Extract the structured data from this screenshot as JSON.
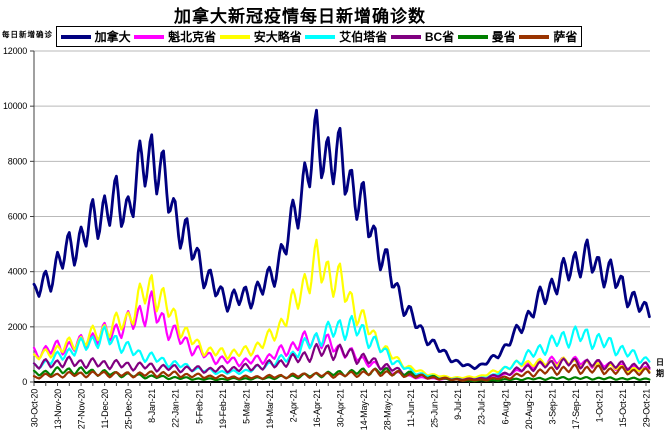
{
  "chart_data": {
    "type": "line",
    "title": "加拿大新冠疫情每日新增确诊数",
    "ylabel": "每日新增确诊",
    "xlabel": "日期",
    "ylim": [
      0,
      12000
    ],
    "yticks": [
      0,
      2000,
      4000,
      6000,
      8000,
      10000,
      12000
    ],
    "grid": true,
    "legend_position": "top",
    "x_start_label": "30-Oct-20",
    "x_end_label": "29-Oct-21",
    "n_days": 365,
    "xtick_label_every_days": 14,
    "minor_xtick_every_days": 7,
    "xtick_labels": [
      "30-Oct-20",
      "13-Nov-20",
      "27-Nov-20",
      "11-Dec-20",
      "25-Dec-20",
      "8-Jan-21",
      "22-Jan-21",
      "5-Feb-21",
      "19-Feb-21",
      "5-Mar-21",
      "19-Mar-21",
      "2-Apr-21",
      "16-Apr-21",
      "30-Apr-21",
      "14-May-21",
      "28-May-21",
      "11-Jun-21",
      "25-Jun-21",
      "9-Jul-21",
      "23-Jul-21",
      "6-Aug-21",
      "20-Aug-21",
      "3-Sep-21",
      "17-Sep-21",
      "1-Oct-21",
      "15-Oct-21",
      "29-Oct-21"
    ],
    "sampling_note": "weekly_values are weekly-mean daily new cases sampled every 7 days from 30-Oct-20; the plotted daily line oscillates around these means with a 7-day reporting cycle of relative amplitude osc_amp",
    "series": [
      {
        "name": "加拿大",
        "color": "#000080",
        "osc_amp": 0.12,
        "weekly_values": [
          3200,
          3600,
          4300,
          4800,
          5200,
          5800,
          6300,
          6500,
          6300,
          7600,
          8400,
          7300,
          6100,
          5200,
          4400,
          3600,
          3100,
          3000,
          3100,
          3300,
          3700,
          4600,
          5800,
          7400,
          8600,
          8300,
          8000,
          7200,
          6300,
          5200,
          4200,
          3200,
          2400,
          1800,
          1350,
          1000,
          700,
          550,
          600,
          850,
          1250,
          1800,
          2400,
          3000,
          3500,
          3900,
          4400,
          4500,
          4200,
          3900,
          3500,
          2900,
          2600
        ]
      },
      {
        "name": "魁北克省",
        "color": "#FF00FF",
        "osc_amp": 0.18,
        "weekly_values": [
          1050,
          1150,
          1250,
          1300,
          1400,
          1600,
          1750,
          1900,
          2100,
          2500,
          2700,
          2200,
          1700,
          1400,
          1100,
          900,
          800,
          750,
          750,
          800,
          900,
          1100,
          1300,
          1500,
          1600,
          1400,
          1200,
          1000,
          800,
          600,
          450,
          300,
          200,
          150,
          120,
          100,
          90,
          80,
          100,
          150,
          250,
          400,
          550,
          650,
          750,
          800,
          750,
          700,
          650,
          600,
          550,
          500,
          480
        ]
      },
      {
        "name": "安大略省",
        "color": "#FFFF00",
        "osc_amp": 0.16,
        "weekly_values": [
          900,
          1000,
          1200,
          1350,
          1500,
          1700,
          1900,
          2100,
          2300,
          3000,
          3500,
          2900,
          2300,
          1700,
          1300,
          1100,
          1050,
          1050,
          1100,
          1300,
          1600,
          2100,
          2800,
          3600,
          4300,
          4000,
          3600,
          2900,
          2200,
          1600,
          1100,
          750,
          500,
          350,
          250,
          180,
          160,
          170,
          220,
          350,
          500,
          650,
          700,
          700,
          700,
          750,
          700,
          650,
          600,
          550,
          500,
          450,
          420
        ]
      },
      {
        "name": "艾伯塔省",
        "color": "#00FFFF",
        "osc_amp": 0.18,
        "weekly_values": [
          550,
          700,
          900,
          1100,
          1300,
          1500,
          1650,
          1500,
          1200,
          1000,
          900,
          750,
          650,
          550,
          450,
          400,
          350,
          350,
          400,
          500,
          650,
          800,
          1000,
          1300,
          1600,
          1800,
          2000,
          2000,
          1800,
          1400,
          1000,
          650,
          400,
          280,
          180,
          130,
          100,
          100,
          130,
          250,
          450,
          700,
          950,
          1200,
          1400,
          1600,
          1700,
          1650,
          1500,
          1350,
          1150,
          950,
          800
        ]
      },
      {
        "name": "BC省",
        "color": "#800080",
        "osc_amp": 0.22,
        "weekly_values": [
          600,
          650,
          700,
          720,
          700,
          680,
          660,
          640,
          600,
          580,
          560,
          520,
          500,
          480,
          460,
          450,
          460,
          480,
          520,
          560,
          620,
          700,
          800,
          950,
          1100,
          1150,
          1100,
          1000,
          850,
          700,
          550,
          400,
          280,
          200,
          150,
          120,
          100,
          100,
          130,
          200,
          300,
          420,
          530,
          600,
          650,
          700,
          700,
          680,
          650,
          620,
          600,
          580,
          560
        ]
      },
      {
        "name": "曼省",
        "color": "#008000",
        "osc_amp": 0.28,
        "weekly_values": [
          300,
          350,
          400,
          420,
          400,
          370,
          330,
          290,
          250,
          220,
          190,
          170,
          150,
          130,
          110,
          100,
          100,
          110,
          120,
          130,
          150,
          170,
          200,
          230,
          260,
          290,
          320,
          350,
          380,
          400,
          380,
          340,
          280,
          220,
          160,
          110,
          70,
          50,
          50,
          60,
          80,
          100,
          110,
          120,
          130,
          140,
          140,
          135,
          130,
          125,
          120,
          115,
          110
        ]
      },
      {
        "name": "萨省",
        "color": "#993300",
        "osc_amp": 0.3,
        "weekly_values": [
          180,
          220,
          250,
          270,
          280,
          290,
          290,
          280,
          270,
          280,
          290,
          300,
          280,
          250,
          220,
          200,
          180,
          170,
          170,
          180,
          190,
          210,
          230,
          250,
          260,
          260,
          250,
          280,
          320,
          350,
          330,
          290,
          240,
          190,
          150,
          110,
          80,
          70,
          80,
          110,
          160,
          230,
          300,
          360,
          410,
          450,
          470,
          460,
          440,
          420,
          400,
          380,
          360
        ]
      }
    ]
  }
}
